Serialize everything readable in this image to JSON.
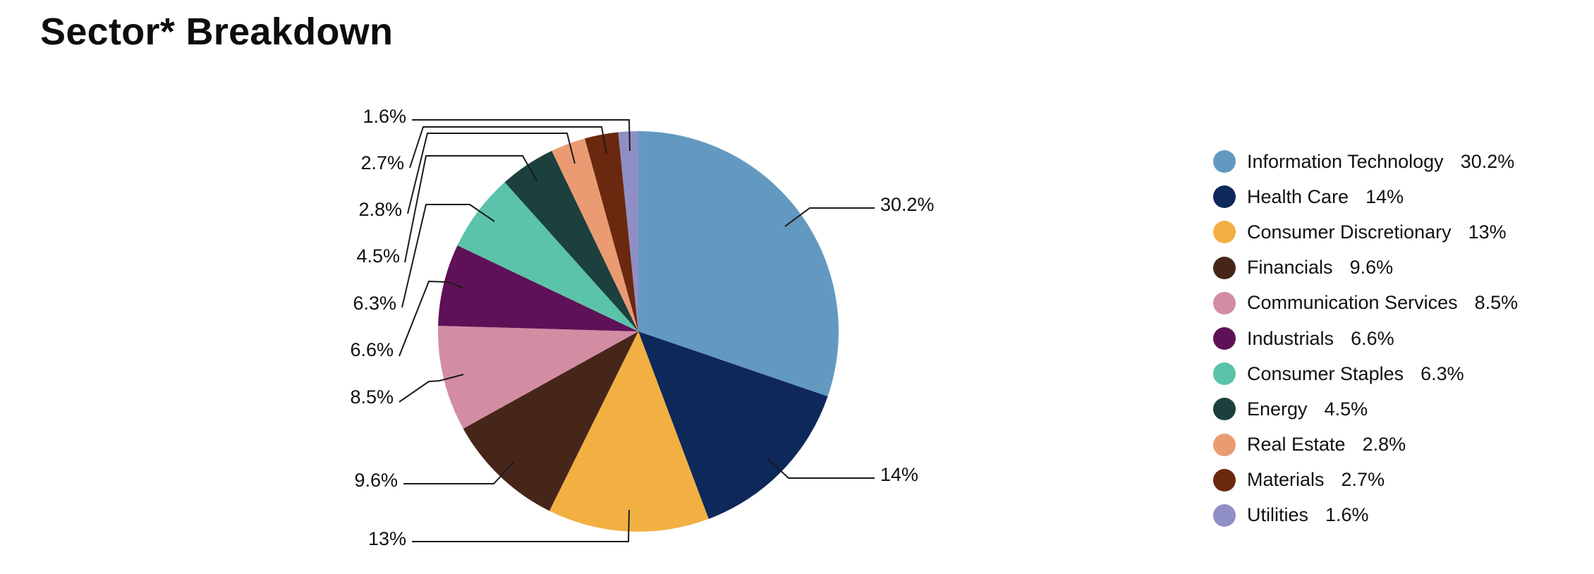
{
  "page": {
    "title": "Sector* Breakdown"
  },
  "chart_data": {
    "type": "pie",
    "title": "Sector* Breakdown",
    "legend_position": "right",
    "slices": [
      {
        "label": "Information Technology",
        "value": 30.2,
        "display": "30.2%",
        "color": "#6399C0"
      },
      {
        "label": "Health Care",
        "value": 14,
        "display": "14%",
        "color": "#0E285A"
      },
      {
        "label": "Consumer Discretionary",
        "value": 13,
        "display": "13%",
        "color": "#F2B043"
      },
      {
        "label": "Financials",
        "value": 9.6,
        "display": "9.6%",
        "color": "#47261A"
      },
      {
        "label": "Communication Services",
        "value": 8.5,
        "display": "8.5%",
        "color": "#D38DA3"
      },
      {
        "label": "Industrials",
        "value": 6.6,
        "display": "6.6%",
        "color": "#5F1157"
      },
      {
        "label": "Consumer Staples",
        "value": 6.3,
        "display": "6.3%",
        "color": "#5BC3A9"
      },
      {
        "label": "Energy",
        "value": 4.5,
        "display": "4.5%",
        "color": "#1B403E"
      },
      {
        "label": "Real Estate",
        "value": 2.8,
        "display": "2.8%",
        "color": "#EB9B72"
      },
      {
        "label": "Materials",
        "value": 2.7,
        "display": "2.7%",
        "color": "#6A280E"
      },
      {
        "label": "Utilities",
        "value": 1.6,
        "display": "1.6%",
        "color": "#908FC5"
      }
    ]
  }
}
